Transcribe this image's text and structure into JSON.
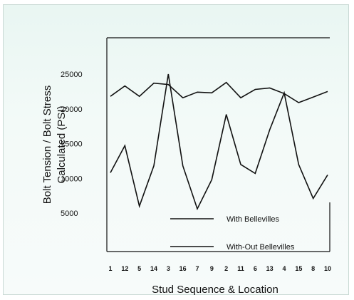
{
  "chart_data": {
    "type": "line",
    "title": "",
    "xlabel": "Stud Sequence & Location",
    "ylabel_lines": [
      "Bolt Tension / Bolt Stress",
      "Calculated (PSI)"
    ],
    "categories": [
      "1",
      "12",
      "5",
      "14",
      "3",
      "16",
      "7",
      "9",
      "2",
      "11",
      "6",
      "13",
      "4",
      "15",
      "8",
      "10"
    ],
    "yticks": [
      "25000",
      "20000",
      "15000",
      "10000",
      "5000"
    ],
    "ytick_values": [
      25000,
      20000,
      15000,
      10000,
      5000
    ],
    "series": [
      {
        "name": "With Bellevilles",
        "values": [
          21800,
          23300,
          21800,
          23700,
          23500,
          21600,
          22400,
          22300,
          23800,
          21600,
          22800,
          23000,
          22200,
          20900,
          21700,
          22500
        ]
      },
      {
        "name": "With-Out Bellevilles",
        "values": [
          10800,
          14700,
          6000,
          11800,
          25000,
          11800,
          5600,
          9800,
          19200,
          12000,
          10700,
          17000,
          22300,
          12000,
          7100,
          10500
        ]
      }
    ],
    "colors": {
      "line": "#111111",
      "background": "#eef8f5"
    },
    "legend_position": "bottom-right"
  }
}
